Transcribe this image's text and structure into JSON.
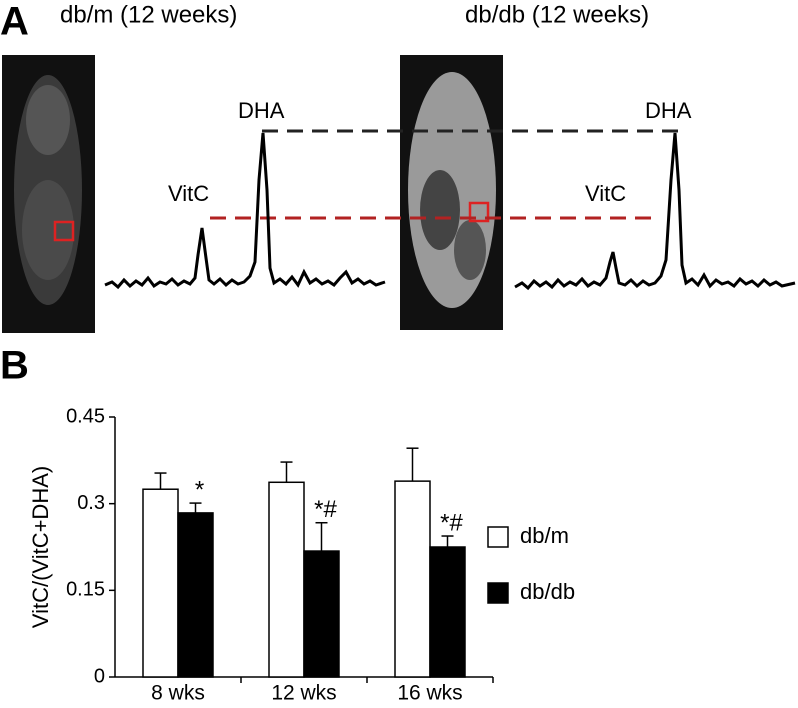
{
  "panel_a": {
    "label": "A",
    "left_title": "db/m (12 weeks)",
    "right_title": "db/db (12 weeks)",
    "left_vitc": "VitC",
    "left_dha": "DHA",
    "right_vitc": "VitC",
    "right_dha": "DHA"
  },
  "panel_b": {
    "label": "B"
  },
  "chart_data": {
    "type": "bar",
    "y_label": "VitC/(VitC+DHA)",
    "categories": [
      "8 wks",
      "12 wks",
      "16 wks"
    ],
    "series": [
      {
        "name": "db/m",
        "color": "#ffffff",
        "values": [
          0.325,
          0.337,
          0.339
        ],
        "errors": [
          0.028,
          0.035,
          0.057
        ]
      },
      {
        "name": "db/db",
        "color": "#000000",
        "values": [
          0.284,
          0.218,
          0.225
        ],
        "errors": [
          0.017,
          0.049,
          0.019
        ],
        "annotations": [
          "*",
          "*#",
          "*#"
        ]
      }
    ],
    "ylim": [
      0,
      0.45
    ],
    "yticks": [
      0,
      0.15,
      0.3,
      0.45
    ]
  }
}
